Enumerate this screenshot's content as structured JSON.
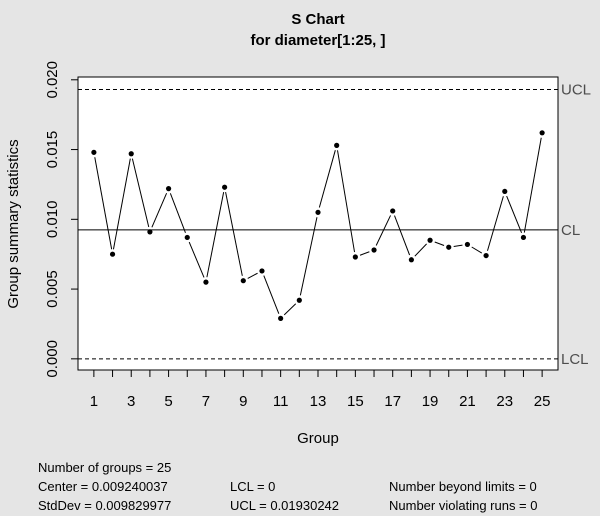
{
  "chart_data": {
    "type": "line",
    "title": "S Chart",
    "subtitle": "for diameter[1:25, ]",
    "xlabel": "Group",
    "ylabel": "Group summary statistics",
    "x": [
      1,
      2,
      3,
      4,
      5,
      6,
      7,
      8,
      9,
      10,
      11,
      12,
      13,
      14,
      15,
      16,
      17,
      18,
      19,
      20,
      21,
      22,
      23,
      24,
      25
    ],
    "values": [
      0.0148,
      0.0075,
      0.0147,
      0.0091,
      0.0122,
      0.0087,
      0.0055,
      0.0123,
      0.0056,
      0.0063,
      0.0029,
      0.0042,
      0.0105,
      0.0153,
      0.0073,
      0.0078,
      0.0106,
      0.0071,
      0.0085,
      0.008,
      0.0082,
      0.0074,
      0.012,
      0.0087,
      0.0162
    ],
    "xlim": [
      0.15,
      25.85
    ],
    "ylim": [
      -0.0008,
      0.0202
    ],
    "x_ticks": [
      1,
      3,
      5,
      7,
      9,
      11,
      13,
      15,
      17,
      19,
      21,
      23,
      25
    ],
    "x_ticks_lower": [
      2,
      4,
      6,
      8,
      10,
      12,
      14,
      16,
      18,
      20,
      22,
      24
    ],
    "y_ticks": [
      "0.000",
      "0.005",
      "0.010",
      "0.015",
      "0.020"
    ],
    "center_line": 0.009240037,
    "ucl": 0.01930242,
    "lcl": 0,
    "limit_labels": {
      "ucl": "UCL",
      "cl": "CL",
      "lcl": "LCL"
    },
    "grid": false
  },
  "stats": {
    "groups": "Number of groups = 25",
    "center": "Center = 0.009240037",
    "stddev": "StdDev = 0.009829977",
    "lcl": "LCL = 0",
    "ucl": "UCL = 0.01930242",
    "beyond": "Number beyond limits = 0",
    "violating": "Number violating runs = 0"
  }
}
